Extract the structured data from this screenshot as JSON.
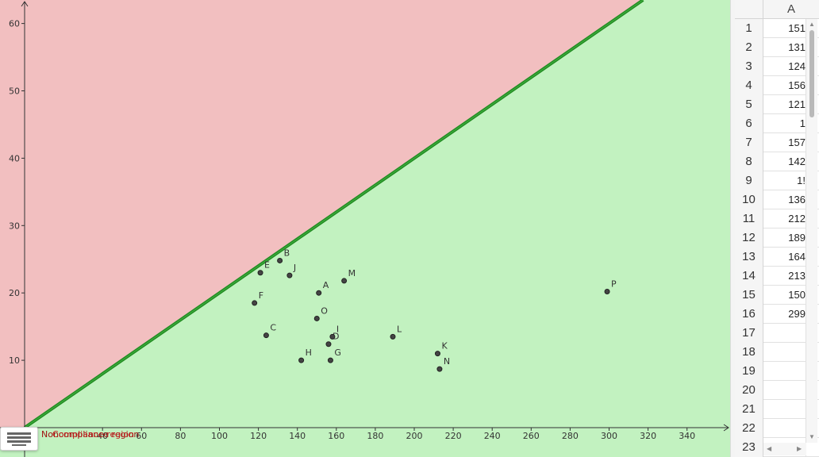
{
  "graphics": {
    "regions": {
      "noncompliance_label": "Noncompliance region",
      "compliance_label": "Compliance region",
      "noncompliance_color": "#f2bfc0",
      "compliance_color": "#c2f2c0",
      "boundary_color": "#1f8a1f"
    },
    "x_axis_ticks": [
      "40",
      "60",
      "80",
      "100",
      "120",
      "140",
      "160",
      "180",
      "200",
      "220",
      "240",
      "260",
      "280",
      "300",
      "320",
      "340"
    ],
    "y_axis_ticks": [
      "10",
      "20",
      "30",
      "40",
      "50",
      "60"
    ],
    "points": [
      {
        "label": "A",
        "x": 151,
        "y": 20
      },
      {
        "label": "B",
        "x": 131,
        "y": 24.8
      },
      {
        "label": "C",
        "x": 124,
        "y": 13.7
      },
      {
        "label": "D",
        "x": 156,
        "y": 12.4
      },
      {
        "label": "E",
        "x": 121,
        "y": 23
      },
      {
        "label": "F",
        "x": 118,
        "y": 18.5
      },
      {
        "label": "G",
        "x": 157,
        "y": 10
      },
      {
        "label": "H",
        "x": 142,
        "y": 10
      },
      {
        "label": "I",
        "x": 158,
        "y": 13.5
      },
      {
        "label": "J",
        "x": 136,
        "y": 22.6
      },
      {
        "label": "K",
        "x": 212,
        "y": 11
      },
      {
        "label": "L",
        "x": 189,
        "y": 13.5
      },
      {
        "label": "M",
        "x": 164,
        "y": 21.8
      },
      {
        "label": "N",
        "x": 213,
        "y": 8.7
      },
      {
        "label": "O",
        "x": 150,
        "y": 16.2
      },
      {
        "label": "P",
        "x": 299,
        "y": 20.2
      }
    ]
  },
  "spreadsheet": {
    "column_header": "A",
    "rows": [
      {
        "num": "1",
        "value": "151"
      },
      {
        "num": "2",
        "value": "131"
      },
      {
        "num": "3",
        "value": "124"
      },
      {
        "num": "4",
        "value": "156"
      },
      {
        "num": "5",
        "value": "121"
      },
      {
        "num": "6",
        "value": "1"
      },
      {
        "num": "7",
        "value": "157"
      },
      {
        "num": "8",
        "value": "142"
      },
      {
        "num": "9",
        "value": "1!"
      },
      {
        "num": "10",
        "value": "136"
      },
      {
        "num": "11",
        "value": "212"
      },
      {
        "num": "12",
        "value": "189"
      },
      {
        "num": "13",
        "value": "164"
      },
      {
        "num": "14",
        "value": "213"
      },
      {
        "num": "15",
        "value": "150"
      },
      {
        "num": "16",
        "value": "299"
      },
      {
        "num": "17",
        "value": ""
      },
      {
        "num": "18",
        "value": ""
      },
      {
        "num": "19",
        "value": ""
      },
      {
        "num": "20",
        "value": ""
      },
      {
        "num": "21",
        "value": ""
      },
      {
        "num": "22",
        "value": ""
      },
      {
        "num": "23",
        "value": ""
      }
    ]
  },
  "icons": {
    "keyboard": "keyboard-icon",
    "scroll_up": "scroll-up-arrow-icon",
    "scroll_down": "scroll-down-arrow-icon",
    "scroll_left": "scroll-left-arrow-icon",
    "scroll_right": "scroll-right-arrow-icon"
  }
}
